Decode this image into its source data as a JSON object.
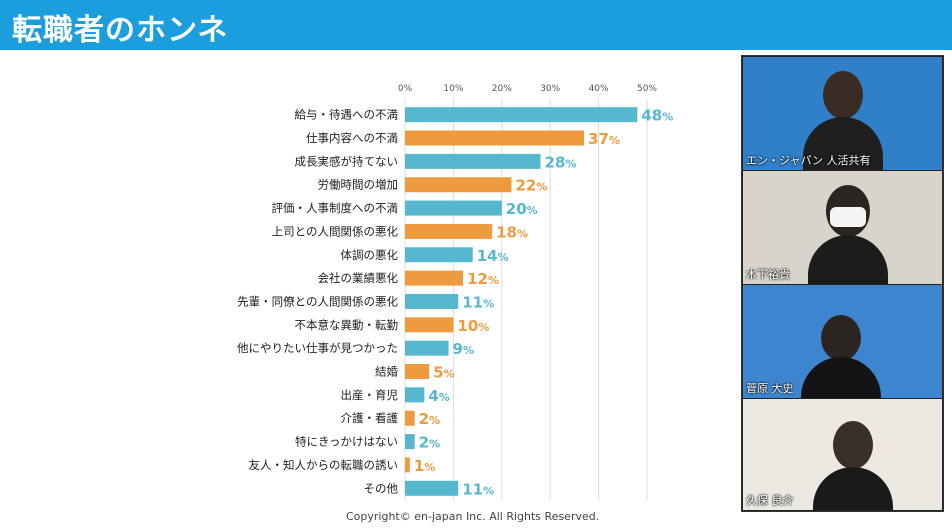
{
  "header": {
    "title": "転職者のホンネ"
  },
  "chart_data": {
    "type": "bar",
    "orientation": "horizontal",
    "xlim": [
      0,
      50
    ],
    "ticks": [
      "0%",
      "10%",
      "20%",
      "30%",
      "40%",
      "50%"
    ],
    "value_suffix": "%",
    "colors": [
      "#55b8cf",
      "#ee9a3e"
    ],
    "categories": [
      "給与・待遇への不満",
      "仕事内容への不満",
      "成長実感が持てない",
      "労働時間の増加",
      "評価・人事制度への不満",
      "上司との人間関係の悪化",
      "体調の悪化",
      "会社の業績悪化",
      "先輩・同僚との人間関係の悪化",
      "不本意な異動・転勤",
      "他にやりたい仕事が見つかった",
      "結婚",
      "出産・育児",
      "介護・看護",
      "特にきっかけはない",
      "友人・知人からの転職の誘い",
      "その他"
    ],
    "values": [
      48,
      37,
      28,
      22,
      20,
      18,
      14,
      12,
      11,
      10,
      9,
      5,
      4,
      2,
      2,
      1,
      11
    ]
  },
  "footer": {
    "copyright": "Copyright© en-japan Inc. All Rights Reserved."
  },
  "video_panels": [
    {
      "label": "エン・ジャパン 人活共有",
      "bg": "#2f7fc9",
      "accent": "#ffffff"
    },
    {
      "label": "木下裕貴",
      "bg": "#d8d4cc",
      "accent": "#1a1a1a"
    },
    {
      "label": "菅原 大史",
      "bg": "#3d86cf",
      "accent": "#ffd400"
    },
    {
      "label": "久保 良介",
      "bg": "#ece9e2",
      "accent": "#2b7bc4"
    }
  ]
}
